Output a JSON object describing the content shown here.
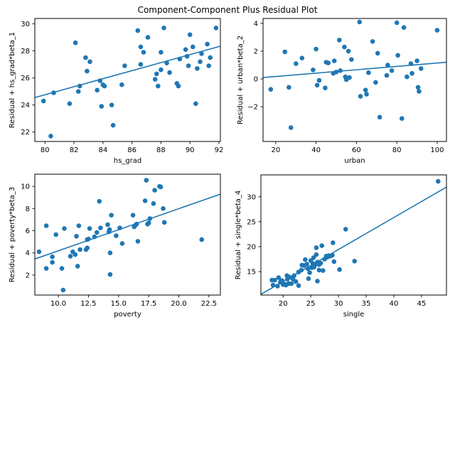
{
  "figure": {
    "title": "Component-Component Plus Residual Plot",
    "marker_color": "#1f77b4",
    "line_color": "#1f77b4",
    "background_color": "#ffffff",
    "grid": "off",
    "legend": "none"
  },
  "chart_data": [
    {
      "type": "scatter",
      "xlabel": "hs_grad",
      "ylabel": "Residual + hs_grad*beta_1",
      "xlim": [
        79.3,
        92.1
      ],
      "ylim": [
        21.3,
        30.4
      ],
      "xticks": [
        {
          "v": 80,
          "label": "80"
        },
        {
          "v": 82,
          "label": "82"
        },
        {
          "v": 84,
          "label": "84"
        },
        {
          "v": 86,
          "label": "86"
        },
        {
          "v": 88,
          "label": "88"
        },
        {
          "v": 90,
          "label": "90"
        },
        {
          "v": 92,
          "label": "92"
        }
      ],
      "yticks": [
        {
          "v": 22,
          "label": "22"
        },
        {
          "v": 24,
          "label": "24"
        },
        {
          "v": 26,
          "label": "26"
        },
        {
          "v": 28,
          "label": "28"
        },
        {
          "v": 30,
          "label": "30"
        }
      ],
      "trendline": {
        "x": [
          79.3,
          92.1
        ],
        "y": [
          24.55,
          28.35
        ]
      },
      "points": [
        [
          79.9,
          24.3
        ],
        [
          80.4,
          21.7
        ],
        [
          80.6,
          24.9
        ],
        [
          81.7,
          24.1
        ],
        [
          82.1,
          28.6
        ],
        [
          82.3,
          25.0
        ],
        [
          82.4,
          25.4
        ],
        [
          82.8,
          27.5
        ],
        [
          82.9,
          26.5
        ],
        [
          83.1,
          27.2
        ],
        [
          83.6,
          25.1
        ],
        [
          83.8,
          25.8
        ],
        [
          83.9,
          23.9
        ],
        [
          84.0,
          25.5
        ],
        [
          84.1,
          25.4
        ],
        [
          84.6,
          24.0
        ],
        [
          84.7,
          22.5
        ],
        [
          85.3,
          25.5
        ],
        [
          85.5,
          26.9
        ],
        [
          86.4,
          29.5
        ],
        [
          86.6,
          28.3
        ],
        [
          86.6,
          27.0
        ],
        [
          86.8,
          27.9
        ],
        [
          87.1,
          29.0
        ],
        [
          87.6,
          25.9
        ],
        [
          87.7,
          26.3
        ],
        [
          87.8,
          25.4
        ],
        [
          88.0,
          27.9
        ],
        [
          88.0,
          26.6
        ],
        [
          88.2,
          29.7
        ],
        [
          88.4,
          27.1
        ],
        [
          88.6,
          26.4
        ],
        [
          89.1,
          25.6
        ],
        [
          89.2,
          25.4
        ],
        [
          89.3,
          27.4
        ],
        [
          89.7,
          28.1
        ],
        [
          89.8,
          27.6
        ],
        [
          89.9,
          26.9
        ],
        [
          90.0,
          29.2
        ],
        [
          90.2,
          28.3
        ],
        [
          90.4,
          24.1
        ],
        [
          90.5,
          26.7
        ],
        [
          90.7,
          27.2
        ],
        [
          90.8,
          27.8
        ],
        [
          91.2,
          28.5
        ],
        [
          91.3,
          26.9
        ],
        [
          91.4,
          27.5
        ],
        [
          91.8,
          29.7
        ]
      ]
    },
    {
      "type": "scatter",
      "xlabel": "urban",
      "ylabel": "Residual + urban*beta_2",
      "xlim": [
        13.7,
        104.6
      ],
      "ylim": [
        -4.5,
        4.35
      ],
      "xticks": [
        {
          "v": 20,
          "label": "20"
        },
        {
          "v": 40,
          "label": "40"
        },
        {
          "v": 60,
          "label": "60"
        },
        {
          "v": 80,
          "label": "80"
        },
        {
          "v": 100,
          "label": "100"
        }
      ],
      "yticks": [
        {
          "v": -2,
          "label": "−2"
        },
        {
          "v": 0,
          "label": "0"
        },
        {
          "v": 2,
          "label": "2"
        },
        {
          "v": 4,
          "label": "4"
        }
      ],
      "trendline": {
        "x": [
          13.7,
          104.6
        ],
        "y": [
          0.1,
          1.2
        ]
      },
      "points": [
        [
          17.5,
          -0.75
        ],
        [
          24.5,
          1.95
        ],
        [
          26.5,
          -0.6
        ],
        [
          27.5,
          -3.5
        ],
        [
          30,
          1.1
        ],
        [
          33,
          1.5
        ],
        [
          38.5,
          0.65
        ],
        [
          40,
          2.15
        ],
        [
          40.5,
          -0.45
        ],
        [
          41.5,
          -0.1
        ],
        [
          44.5,
          -0.65
        ],
        [
          45,
          1.2
        ],
        [
          46,
          1.15
        ],
        [
          48.5,
          0.4
        ],
        [
          49,
          1.3
        ],
        [
          50,
          0.5
        ],
        [
          51.5,
          2.8
        ],
        [
          52,
          0.6
        ],
        [
          54,
          2.3
        ],
        [
          54.5,
          0.15
        ],
        [
          55,
          -0.05
        ],
        [
          56,
          2.0
        ],
        [
          56.5,
          0.1
        ],
        [
          57.5,
          1.4
        ],
        [
          61.5,
          4.1
        ],
        [
          62,
          -1.25
        ],
        [
          64.5,
          -0.8
        ],
        [
          65,
          -1.1
        ],
        [
          66,
          0.45
        ],
        [
          68,
          2.7
        ],
        [
          69.5,
          -0.25
        ],
        [
          70.5,
          1.85
        ],
        [
          71.5,
          -2.75
        ],
        [
          75,
          0.25
        ],
        [
          75.5,
          1.0
        ],
        [
          77.5,
          0.6
        ],
        [
          80,
          4.05
        ],
        [
          80.5,
          1.7
        ],
        [
          82.5,
          -2.85
        ],
        [
          83.5,
          3.7
        ],
        [
          85,
          0.15
        ],
        [
          87,
          1.1
        ],
        [
          87.5,
          0.4
        ],
        [
          90,
          1.3
        ],
        [
          90.5,
          -0.6
        ],
        [
          91,
          -0.9
        ],
        [
          92,
          0.75
        ],
        [
          100,
          3.5
        ]
      ]
    },
    {
      "type": "scatter",
      "xlabel": "poverty",
      "ylabel": "Residual + poverty*beta_3",
      "xlim": [
        8.05,
        23.45
      ],
      "ylim": [
        0.2,
        11.1
      ],
      "xticks": [
        {
          "v": 10,
          "label": "10.0"
        },
        {
          "v": 12.5,
          "label": "12.5"
        },
        {
          "v": 15,
          "label": "15.0"
        },
        {
          "v": 17.5,
          "label": "17.5"
        },
        {
          "v": 20,
          "label": "20.0"
        },
        {
          "v": 22.5,
          "label": "22.5"
        }
      ],
      "yticks": [
        {
          "v": 2,
          "label": "2"
        },
        {
          "v": 4,
          "label": "4"
        },
        {
          "v": 6,
          "label": "6"
        },
        {
          "v": 8,
          "label": "8"
        },
        {
          "v": 10,
          "label": "10"
        }
      ],
      "trendline": {
        "x": [
          8.05,
          23.45
        ],
        "y": [
          3.45,
          9.3
        ]
      },
      "points": [
        [
          8.4,
          4.1
        ],
        [
          9.0,
          6.45
        ],
        [
          9.0,
          2.6
        ],
        [
          9.5,
          3.65
        ],
        [
          9.5,
          3.15
        ],
        [
          9.8,
          5.65
        ],
        [
          10.3,
          2.6
        ],
        [
          10.4,
          0.65
        ],
        [
          10.5,
          6.2
        ],
        [
          11.0,
          3.7
        ],
        [
          11.2,
          4.1
        ],
        [
          11.4,
          3.85
        ],
        [
          11.5,
          5.5
        ],
        [
          11.6,
          2.8
        ],
        [
          11.7,
          6.45
        ],
        [
          11.8,
          4.3
        ],
        [
          12.3,
          4.3
        ],
        [
          12.4,
          4.45
        ],
        [
          12.4,
          5.2
        ],
        [
          12.5,
          5.25
        ],
        [
          12.6,
          6.2
        ],
        [
          13.0,
          5.45
        ],
        [
          13.2,
          5.85
        ],
        [
          13.4,
          8.65
        ],
        [
          13.5,
          6.25
        ],
        [
          14.1,
          6.55
        ],
        [
          14.2,
          5.9
        ],
        [
          14.25,
          6.1
        ],
        [
          14.3,
          2.05
        ],
        [
          14.3,
          4.0
        ],
        [
          14.4,
          7.4
        ],
        [
          14.8,
          5.55
        ],
        [
          15.1,
          6.25
        ],
        [
          15.3,
          4.85
        ],
        [
          16.2,
          7.4
        ],
        [
          16.3,
          6.35
        ],
        [
          16.4,
          6.5
        ],
        [
          16.5,
          6.6
        ],
        [
          16.6,
          5.05
        ],
        [
          17.2,
          8.7
        ],
        [
          17.3,
          10.55
        ],
        [
          17.4,
          6.6
        ],
        [
          17.5,
          6.7
        ],
        [
          17.6,
          7.1
        ],
        [
          17.9,
          8.45
        ],
        [
          18.0,
          9.65
        ],
        [
          18.4,
          10.0
        ],
        [
          18.5,
          9.95
        ],
        [
          18.7,
          8.0
        ],
        [
          18.8,
          6.75
        ],
        [
          21.9,
          5.2
        ]
      ]
    },
    {
      "type": "scatter",
      "xlabel": "single",
      "ylabel": "Residual + single*beta_4",
      "xlim": [
        16.0,
        49.5
      ],
      "ylim": [
        10.3,
        34.4
      ],
      "xticks": [
        {
          "v": 20,
          "label": "20"
        },
        {
          "v": 25,
          "label": "25"
        },
        {
          "v": 30,
          "label": "30"
        },
        {
          "v": 35,
          "label": "35"
        },
        {
          "v": 40,
          "label": "40"
        },
        {
          "v": 45,
          "label": "45"
        }
      ],
      "yticks": [
        {
          "v": 15,
          "label": "15"
        },
        {
          "v": 20,
          "label": "20"
        },
        {
          "v": 25,
          "label": "25"
        },
        {
          "v": 30,
          "label": "30"
        }
      ],
      "trendline": {
        "x": [
          16.0,
          49.5
        ],
        "y": [
          10.45,
          31.95
        ]
      },
      "points": [
        [
          18,
          13.3
        ],
        [
          18.2,
          12.3
        ],
        [
          18.5,
          13.3
        ],
        [
          19,
          12.1
        ],
        [
          19.2,
          13.8
        ],
        [
          19.5,
          12.9
        ],
        [
          19.8,
          13.2
        ],
        [
          20,
          12.4
        ],
        [
          20.3,
          12.5
        ],
        [
          20.5,
          12.3
        ],
        [
          20.7,
          14.2
        ],
        [
          20.8,
          13.5
        ],
        [
          21,
          12.6
        ],
        [
          21.2,
          13.9
        ],
        [
          21.5,
          12.6
        ],
        [
          21.8,
          13.5
        ],
        [
          22,
          14.2
        ],
        [
          22.3,
          13.0
        ],
        [
          22.8,
          12.2
        ],
        [
          22.8,
          14.9
        ],
        [
          23.3,
          15.3
        ],
        [
          23.4,
          16.3
        ],
        [
          23.8,
          16.2
        ],
        [
          24,
          17.4
        ],
        [
          24.3,
          16.5
        ],
        [
          24.5,
          15.6
        ],
        [
          24.6,
          13.6
        ],
        [
          24.8,
          14.8
        ],
        [
          25,
          17.2
        ],
        [
          25.2,
          15.8
        ],
        [
          25.4,
          16.6
        ],
        [
          25.5,
          17.8
        ],
        [
          25.6,
          15.9
        ],
        [
          25.9,
          16.5
        ],
        [
          26,
          19.8
        ],
        [
          26,
          18.4
        ],
        [
          26.2,
          16.9
        ],
        [
          26.2,
          13.1
        ],
        [
          26.3,
          16.6
        ],
        [
          26.5,
          16.4
        ],
        [
          26.5,
          15.3
        ],
        [
          26.8,
          16.7
        ],
        [
          27,
          20.2
        ],
        [
          27.2,
          15.2
        ],
        [
          27.5,
          17.5
        ],
        [
          27.8,
          18.1
        ],
        [
          28,
          17.9
        ],
        [
          28.2,
          18.2
        ],
        [
          28.5,
          18.1
        ],
        [
          28.9,
          18.3
        ],
        [
          29,
          20.8
        ],
        [
          29.2,
          17.0
        ],
        [
          30.2,
          15.4
        ],
        [
          31.3,
          23.5
        ],
        [
          32.9,
          17.1
        ],
        [
          48,
          33.1
        ]
      ]
    }
  ]
}
